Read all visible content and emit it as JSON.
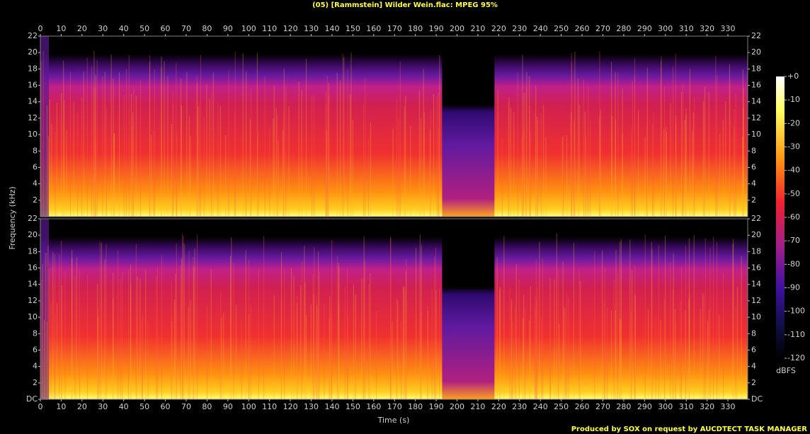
{
  "title": "(05) [Rammstein] Wilder Wein.flac: MPEG 95%",
  "footer": "Produced by SOX on request by AUCDTECT TASK MANAGER",
  "chart_data": [
    {
      "type": "spectrogram",
      "ylabel": "Frequency (kHz)",
      "xlim": [
        0,
        339.5
      ],
      "xticks": [
        0,
        10,
        20,
        30,
        40,
        50,
        60,
        70,
        80,
        90,
        100,
        110,
        120,
        130,
        140,
        150,
        160,
        170,
        180,
        190,
        200,
        210,
        220,
        230,
        240,
        250,
        260,
        270,
        280,
        290,
        300,
        310,
        320,
        330
      ],
      "ylim": [
        0,
        22
      ],
      "yticks": [
        2,
        4,
        6,
        8,
        10,
        12,
        14,
        16,
        18,
        20,
        22
      ]
    },
    {
      "type": "spectrogram",
      "xlabel": "Time (s)",
      "xlim": [
        0,
        339.5
      ],
      "xticks": [
        0,
        10,
        20,
        30,
        40,
        50,
        60,
        70,
        80,
        90,
        100,
        110,
        120,
        130,
        140,
        150,
        160,
        170,
        180,
        190,
        200,
        210,
        220,
        230,
        240,
        250,
        260,
        270,
        280,
        290,
        300,
        310,
        320,
        330
      ],
      "ylim": [
        0,
        22
      ],
      "yticks": [
        {
          "value": 0,
          "label": "DC"
        },
        2,
        4,
        6,
        8,
        10,
        12,
        14,
        16,
        18,
        20,
        22
      ]
    }
  ],
  "colorbar": {
    "label": "dBFS",
    "lim": [
      0,
      -120
    ],
    "ticks": [
      {
        "value": 0,
        "label": "+0"
      },
      -10,
      -20,
      -30,
      -40,
      -50,
      -60,
      -70,
      -80,
      -90,
      -100,
      -110,
      -120
    ]
  }
}
